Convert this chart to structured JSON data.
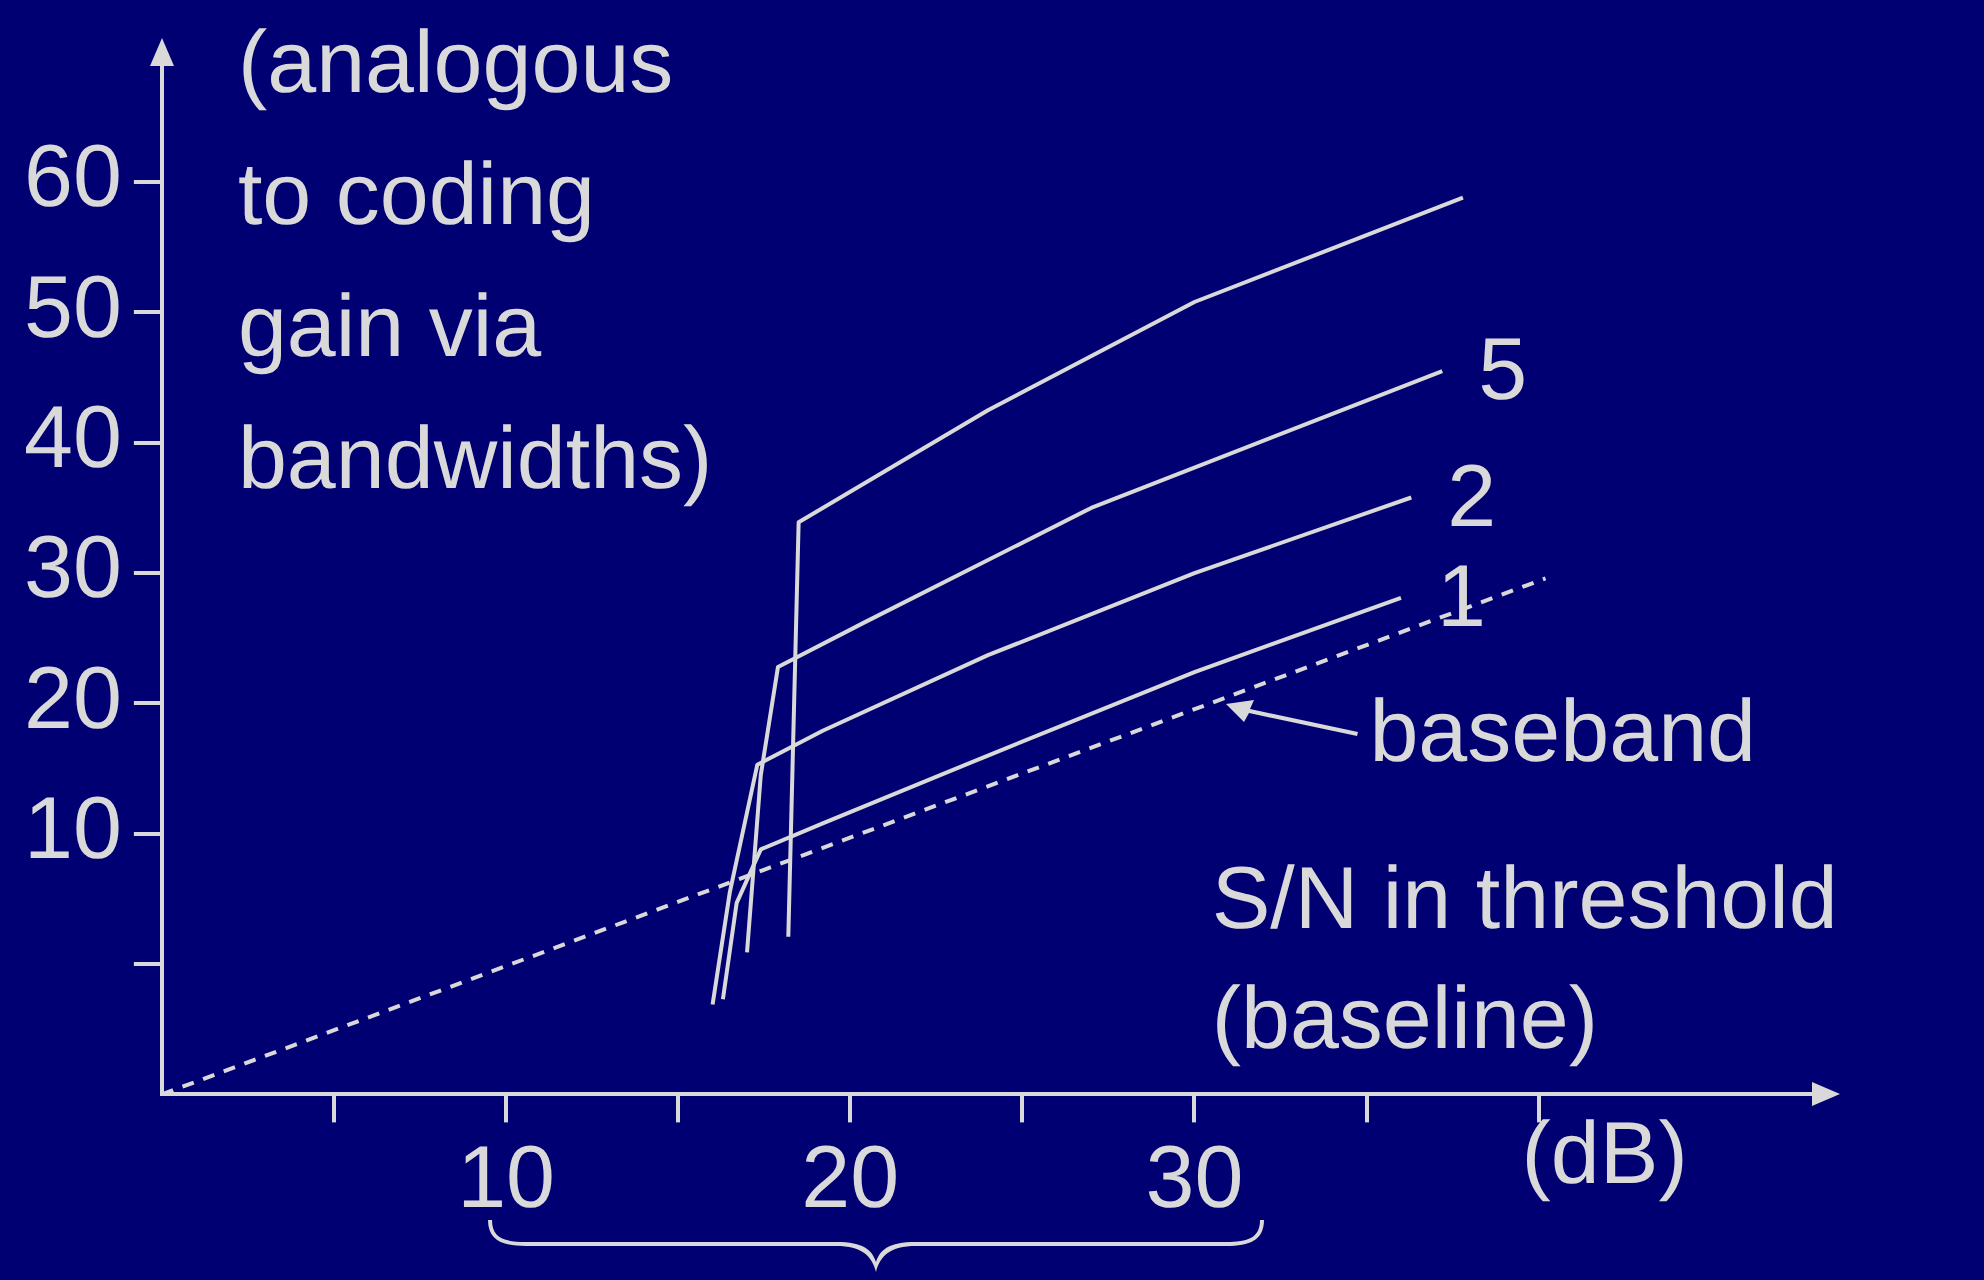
{
  "chart_data": {
    "type": "line",
    "ylabel": "(analogous to coding gain via bandwidths)",
    "xlabel": "(dB)",
    "annotations": [
      "S/N in threshold (baseline)",
      {
        "text": "baseband",
        "x": 30.9,
        "y": 19.9
      }
    ],
    "xlim": [
      0,
      48
    ],
    "ylim": [
      -10,
      69
    ],
    "xticks": [
      {
        "value": 5,
        "label": null
      },
      10,
      {
        "value": 15,
        "label": null
      },
      20,
      {
        "value": 25,
        "label": null
      },
      30,
      {
        "value": 35,
        "label": null
      },
      {
        "value": 40,
        "label": null
      }
    ],
    "yticks": [
      {
        "value": 0,
        "label": null
      },
      10,
      20,
      30,
      40,
      50,
      60
    ],
    "series": [
      {
        "color": "#d9d9d9",
        "line_style": "dashed",
        "x": [
          0,
          40.2
        ],
        "values": [
          -10,
          29.6
        ]
      },
      {
        "name": "1",
        "color": "#d9d9d9",
        "x": [
          16.3,
          16.7,
          17.4,
          19.2,
          24.0,
          30.0,
          36.0
        ],
        "values": [
          -2.7,
          4.7,
          8.8,
          10.8,
          16.0,
          22.4,
          28.1
        ]
      },
      {
        "name": "2",
        "color": "#d9d9d9",
        "x": [
          16.0,
          16.5,
          17.3,
          19.2,
          24.0,
          30.0,
          36.3
        ],
        "values": [
          -3.1,
          5.5,
          15.3,
          17.9,
          23.7,
          30.0,
          35.8
        ]
      },
      {
        "name": "5",
        "color": "#d9d9d9",
        "x": [
          17.0,
          17.4,
          17.9,
          20.4,
          27.0,
          37.2
        ],
        "values": [
          0.9,
          14.5,
          22.8,
          26.2,
          35.0,
          45.5
        ]
      },
      {
        "color": "#d9d9d9",
        "x": [
          18.2,
          18.5,
          24.0,
          30.0,
          37.8
        ],
        "values": [
          2.1,
          33.9,
          42.5,
          50.8,
          58.8
        ]
      }
    ]
  }
}
